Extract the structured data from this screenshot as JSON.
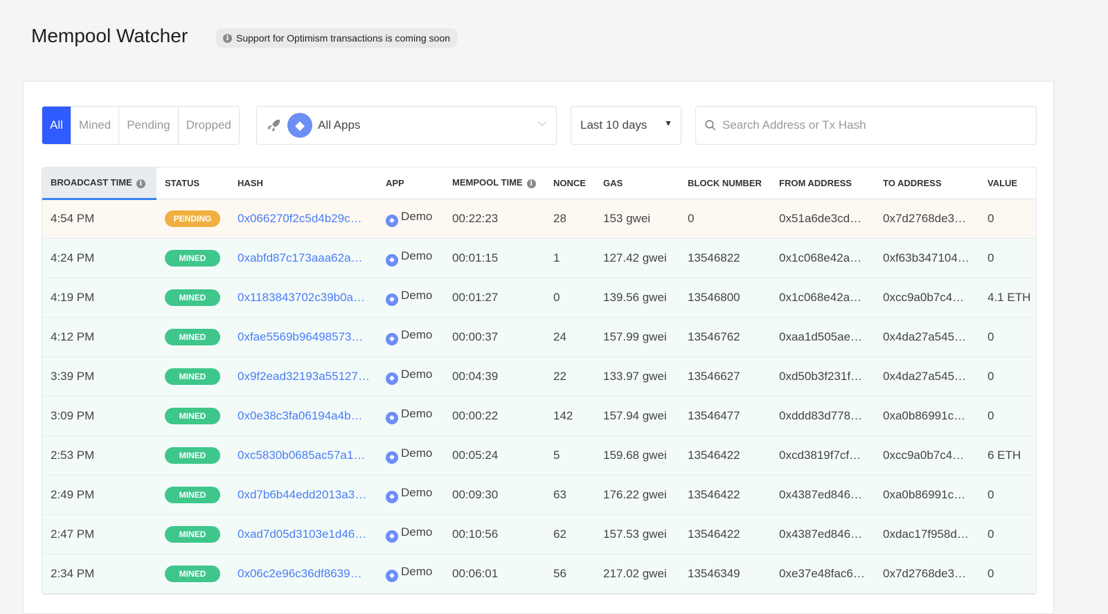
{
  "header": {
    "title": "Mempool Watcher",
    "notice": "Support for Optimism transactions is coming soon"
  },
  "filters": {
    "tabs": [
      "All",
      "Mined",
      "Pending",
      "Dropped"
    ],
    "active_tab": "All",
    "app_select": "All Apps",
    "date_range": "Last 10 days",
    "search_placeholder": "Search Address or Tx Hash"
  },
  "colors": {
    "accent": "#2f5bff",
    "pending": "#efb040",
    "mined": "#3ec68b",
    "link": "#4a7cf7"
  },
  "table": {
    "columns": [
      "BROADCAST TIME",
      "STATUS",
      "HASH",
      "APP",
      "MEMPOOL TIME",
      "NONCE",
      "GAS",
      "BLOCK NUMBER",
      "FROM ADDRESS",
      "TO ADDRESS",
      "VALUE"
    ],
    "rows": [
      {
        "time": "4:54 PM",
        "status": "PENDING",
        "hash": "0x066270f2c5d4b29c…",
        "app": "Demo",
        "mempool": "00:22:23",
        "nonce": "28",
        "gas": "153 gwei",
        "block": "0",
        "from": "0x51a6de3cd…",
        "to": "0x7d2768de3…",
        "value": "0"
      },
      {
        "time": "4:24 PM",
        "status": "MINED",
        "hash": "0xabfd87c173aaa62a…",
        "app": "Demo",
        "mempool": "00:01:15",
        "nonce": "1",
        "gas": "127.42 gwei",
        "block": "13546822",
        "from": "0x1c068e42a…",
        "to": "0xf63b347104…",
        "value": "0"
      },
      {
        "time": "4:19 PM",
        "status": "MINED",
        "hash": "0x1183843702c39b0a…",
        "app": "Demo",
        "mempool": "00:01:27",
        "nonce": "0",
        "gas": "139.56 gwei",
        "block": "13546800",
        "from": "0x1c068e42a…",
        "to": "0xcc9a0b7c4…",
        "value": "4.1 ETH"
      },
      {
        "time": "4:12 PM",
        "status": "MINED",
        "hash": "0xfae5569b96498573…",
        "app": "Demo",
        "mempool": "00:00:37",
        "nonce": "24",
        "gas": "157.99 gwei",
        "block": "13546762",
        "from": "0xaa1d505ae…",
        "to": "0x4da27a545…",
        "value": "0"
      },
      {
        "time": "3:39 PM",
        "status": "MINED",
        "hash": "0x9f2ead32193a55127…",
        "app": "Demo",
        "mempool": "00:04:39",
        "nonce": "22",
        "gas": "133.97 gwei",
        "block": "13546627",
        "from": "0xd50b3f231f…",
        "to": "0x4da27a545…",
        "value": "0"
      },
      {
        "time": "3:09 PM",
        "status": "MINED",
        "hash": "0x0e38c3fa06194a4b…",
        "app": "Demo",
        "mempool": "00:00:22",
        "nonce": "142",
        "gas": "157.94 gwei",
        "block": "13546477",
        "from": "0xddd83d778…",
        "to": "0xa0b86991c…",
        "value": "0"
      },
      {
        "time": "2:53 PM",
        "status": "MINED",
        "hash": "0xc5830b0685ac57a1…",
        "app": "Demo",
        "mempool": "00:05:24",
        "nonce": "5",
        "gas": "159.68 gwei",
        "block": "13546422",
        "from": "0xcd3819f7cf…",
        "to": "0xcc9a0b7c4…",
        "value": "6 ETH"
      },
      {
        "time": "2:49 PM",
        "status": "MINED",
        "hash": "0xd7b6b44edd2013a3…",
        "app": "Demo",
        "mempool": "00:09:30",
        "nonce": "63",
        "gas": "176.22 gwei",
        "block": "13546422",
        "from": "0x4387ed846…",
        "to": "0xa0b86991c…",
        "value": "0"
      },
      {
        "time": "2:47 PM",
        "status": "MINED",
        "hash": "0xad7d05d3103e1d46…",
        "app": "Demo",
        "mempool": "00:10:56",
        "nonce": "62",
        "gas": "157.53 gwei",
        "block": "13546422",
        "from": "0x4387ed846…",
        "to": "0xdac17f958d…",
        "value": "0"
      },
      {
        "time": "2:34 PM",
        "status": "MINED",
        "hash": "0x06c2e96c36df8639…",
        "app": "Demo",
        "mempool": "00:06:01",
        "nonce": "56",
        "gas": "217.02 gwei",
        "block": "13546349",
        "from": "0xe37e48fac6…",
        "to": "0x7d2768de3…",
        "value": "0"
      }
    ]
  }
}
